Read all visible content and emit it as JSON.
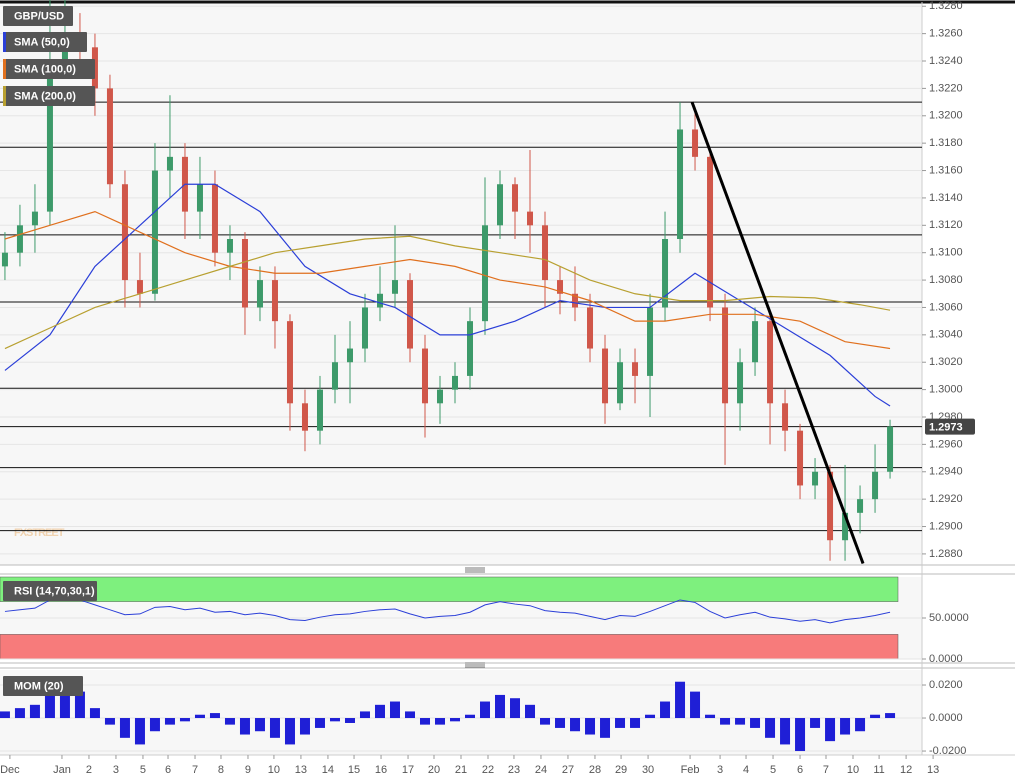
{
  "chart_data": [
    {
      "type": "candlestick",
      "symbol": "GBP/USD",
      "ohlc": [
        [
          1.309,
          1.3115,
          1.308,
          1.31
        ],
        [
          1.31,
          1.3135,
          1.309,
          1.312
        ],
        [
          1.312,
          1.315,
          1.31,
          1.313
        ],
        [
          1.313,
          1.3285,
          1.312,
          1.324
        ],
        [
          1.324,
          1.3285,
          1.323,
          1.326
        ],
        [
          1.326,
          1.3275,
          1.324,
          1.325
        ],
        [
          1.325,
          1.326,
          1.32,
          1.322
        ],
        [
          1.322,
          1.323,
          1.314,
          1.315
        ],
        [
          1.315,
          1.316,
          1.306,
          1.308
        ],
        [
          1.308,
          1.31,
          1.306,
          1.307
        ],
        [
          1.307,
          1.318,
          1.3065,
          1.316
        ],
        [
          1.316,
          1.3215,
          1.314,
          1.317
        ],
        [
          1.317,
          1.318,
          1.311,
          1.313
        ],
        [
          1.313,
          1.317,
          1.311,
          1.315
        ],
        [
          1.315,
          1.316,
          1.309,
          1.31
        ],
        [
          1.31,
          1.312,
          1.308,
          1.311
        ],
        [
          1.311,
          1.3115,
          1.304,
          1.306
        ],
        [
          1.306,
          1.309,
          1.305,
          1.308
        ],
        [
          1.308,
          1.309,
          1.303,
          1.305
        ],
        [
          1.305,
          1.3055,
          1.297,
          1.299
        ],
        [
          1.299,
          1.3,
          1.2955,
          1.297
        ],
        [
          1.297,
          1.301,
          1.296,
          1.3
        ],
        [
          1.3,
          1.304,
          1.299,
          1.302
        ],
        [
          1.302,
          1.305,
          1.299,
          1.303
        ],
        [
          1.303,
          1.307,
          1.302,
          1.306
        ],
        [
          1.306,
          1.309,
          1.305,
          1.307
        ],
        [
          1.307,
          1.312,
          1.306,
          1.308
        ],
        [
          1.308,
          1.3085,
          1.302,
          1.303
        ],
        [
          1.303,
          1.304,
          1.2965,
          1.299
        ],
        [
          1.299,
          1.301,
          1.2975,
          1.3
        ],
        [
          1.3,
          1.302,
          1.299,
          1.301
        ],
        [
          1.301,
          1.306,
          1.3,
          1.305
        ],
        [
          1.305,
          1.3155,
          1.304,
          1.312
        ],
        [
          1.312,
          1.316,
          1.311,
          1.315
        ],
        [
          1.315,
          1.3155,
          1.311,
          1.313
        ],
        [
          1.313,
          1.3175,
          1.31,
          1.312
        ],
        [
          1.312,
          1.313,
          1.306,
          1.308
        ],
        [
          1.308,
          1.309,
          1.3055,
          1.307
        ],
        [
          1.307,
          1.309,
          1.305,
          1.306
        ],
        [
          1.306,
          1.307,
          1.302,
          1.303
        ],
        [
          1.303,
          1.304,
          1.2975,
          1.299
        ],
        [
          1.299,
          1.303,
          1.2985,
          1.302
        ],
        [
          1.302,
          1.303,
          1.299,
          1.301
        ],
        [
          1.301,
          1.307,
          1.298,
          1.306
        ],
        [
          1.306,
          1.313,
          1.305,
          1.311
        ],
        [
          1.311,
          1.321,
          1.31,
          1.319
        ],
        [
          1.319,
          1.3205,
          1.316,
          1.317
        ],
        [
          1.317,
          1.3175,
          1.305,
          1.306
        ],
        [
          1.306,
          1.307,
          1.2945,
          1.299
        ],
        [
          1.299,
          1.303,
          1.297,
          1.302
        ],
        [
          1.302,
          1.306,
          1.301,
          1.305
        ],
        [
          1.305,
          1.3055,
          1.296,
          1.299
        ],
        [
          1.299,
          1.3,
          1.2955,
          1.297
        ],
        [
          1.297,
          1.2975,
          1.292,
          1.293
        ],
        [
          1.293,
          1.295,
          1.292,
          1.294
        ],
        [
          1.294,
          1.2945,
          1.2875,
          1.289
        ],
        [
          1.289,
          1.2945,
          1.2875,
          1.291
        ],
        [
          1.291,
          1.293,
          1.2895,
          1.292
        ],
        [
          1.292,
          1.296,
          1.291,
          1.294
        ],
        [
          1.294,
          1.2978,
          1.2935,
          1.2973
        ]
      ],
      "up_color": "#3d9a6a",
      "down_color": "#d0574a",
      "overlays": [
        {
          "name": "SMA (50,0)",
          "color": "#2b3fd8",
          "x": [
            0,
            3,
            6,
            9,
            12,
            14,
            17,
            20,
            23,
            26,
            29,
            31,
            34,
            37,
            40,
            43,
            46,
            49,
            52,
            55,
            58,
            59
          ],
          "values": [
            1.3014,
            1.304,
            1.309,
            1.312,
            1.315,
            1.315,
            1.313,
            1.309,
            1.307,
            1.306,
            1.304,
            1.304,
            1.305,
            1.3065,
            1.306,
            1.306,
            1.3085,
            1.3065,
            1.3045,
            1.3025,
            1.2995,
            1.2988
          ]
        },
        {
          "name": "SMA (100,0)",
          "color": "#e0701e",
          "x": [
            0,
            3,
            6,
            9,
            12,
            15,
            18,
            21,
            24,
            27,
            30,
            33,
            36,
            39,
            42,
            44,
            47,
            50,
            53,
            56,
            59
          ],
          "values": [
            1.311,
            1.312,
            1.313,
            1.3115,
            1.31,
            1.309,
            1.3085,
            1.3085,
            1.309,
            1.3095,
            1.309,
            1.308,
            1.3075,
            1.3065,
            1.305,
            1.305,
            1.3055,
            1.3055,
            1.305,
            1.3035,
            1.303
          ]
        },
        {
          "name": "SMA (200,0)",
          "color": "#b8a030",
          "x": [
            0,
            3,
            6,
            9,
            12,
            15,
            18,
            21,
            24,
            27,
            30,
            33,
            36,
            39,
            42,
            45,
            48,
            51,
            54,
            57,
            59
          ],
          "values": [
            1.303,
            1.3045,
            1.306,
            1.307,
            1.308,
            1.309,
            1.31,
            1.3105,
            1.311,
            1.3112,
            1.3105,
            1.31,
            1.3095,
            1.308,
            1.307,
            1.3065,
            1.3065,
            1.3068,
            1.3067,
            1.3062,
            1.3058
          ]
        }
      ],
      "levels": [
        1.321,
        1.3177,
        1.3113,
        1.3064,
        1.3001,
        1.2973,
        1.2943,
        1.2897
      ],
      "trendline": {
        "x": [
          45.8,
          57.2
        ],
        "y": [
          1.321,
          1.2873
        ]
      },
      "last_price": 1.2973,
      "watermark": "FXSTREET",
      "xlim": [
        -0.33,
        61.13
      ],
      "ylim": [
        1.28719,
        1.32831
      ],
      "yticks": [
        {
          "value": 1.328,
          "label": "1.3280"
        },
        {
          "value": 1.326,
          "label": "1.3260"
        },
        {
          "value": 1.324,
          "label": "1.3240"
        },
        {
          "value": 1.322,
          "label": "1.3220"
        },
        {
          "value": 1.32,
          "label": "1.3200"
        },
        {
          "value": 1.318,
          "label": "1.3180"
        },
        {
          "value": 1.316,
          "label": "1.3160"
        },
        {
          "value": 1.314,
          "label": "1.3140"
        },
        {
          "value": 1.312,
          "label": "1.3120"
        },
        {
          "value": 1.31,
          "label": "1.3100"
        },
        {
          "value": 1.308,
          "label": "1.3080"
        },
        {
          "value": 1.306,
          "label": "1.3060"
        },
        {
          "value": 1.304,
          "label": "1.3040"
        },
        {
          "value": 1.302,
          "label": "1.3020"
        },
        {
          "value": 1.3,
          "label": "1.3000"
        },
        {
          "value": 1.298,
          "label": "1.2980"
        },
        {
          "value": 1.296,
          "label": "1.2960"
        },
        {
          "value": 1.294,
          "label": "1.2940"
        },
        {
          "value": 1.292,
          "label": "1.2920"
        },
        {
          "value": 1.29,
          "label": "1.2900"
        },
        {
          "value": 1.288,
          "label": "1.2880"
        }
      ],
      "xticks": [
        {
          "value": 0.33,
          "label": "Dec"
        },
        {
          "value": 3.8,
          "label": "Jan"
        },
        {
          "value": 5.6,
          "label": "2"
        },
        {
          "value": 7.4,
          "label": "3"
        },
        {
          "value": 9.2,
          "label": "5"
        },
        {
          "value": 10.87,
          "label": "6"
        },
        {
          "value": 12.67,
          "label": "7"
        },
        {
          "value": 14.4,
          "label": "8"
        },
        {
          "value": 16.2,
          "label": "9"
        },
        {
          "value": 17.93,
          "label": "10"
        },
        {
          "value": 19.73,
          "label": "13"
        },
        {
          "value": 21.53,
          "label": "14"
        },
        {
          "value": 23.27,
          "label": "15"
        },
        {
          "value": 25.07,
          "label": "16"
        },
        {
          "value": 26.87,
          "label": "17"
        },
        {
          "value": 28.6,
          "label": "20"
        },
        {
          "value": 30.4,
          "label": "21"
        },
        {
          "value": 32.2,
          "label": "22"
        },
        {
          "value": 33.93,
          "label": "23"
        },
        {
          "value": 35.73,
          "label": "24"
        },
        {
          "value": 37.53,
          "label": "27"
        },
        {
          "value": 39.33,
          "label": "28"
        },
        {
          "value": 41.07,
          "label": "29"
        },
        {
          "value": 42.87,
          "label": "30"
        },
        {
          "value": 45.67,
          "label": "Feb"
        },
        {
          "value": 47.67,
          "label": "3"
        },
        {
          "value": 49.4,
          "label": "4"
        },
        {
          "value": 51.2,
          "label": "5"
        },
        {
          "value": 53,
          "label": "6"
        },
        {
          "value": 54.73,
          "label": "7"
        },
        {
          "value": 56.53,
          "label": "10"
        },
        {
          "value": 58.27,
          "label": "11"
        },
        {
          "value": 60.07,
          "label": "12"
        },
        {
          "value": 61.87,
          "label": "13"
        }
      ]
    },
    {
      "type": "line",
      "title": "RSI (14,70,30,1)",
      "color": "#2b3fd8",
      "values": [
        58,
        60,
        62,
        72,
        74,
        72,
        66,
        60,
        54,
        55,
        63,
        64,
        60,
        62,
        57,
        58,
        54,
        56,
        53,
        48,
        47,
        51,
        54,
        55,
        58,
        60,
        61,
        55,
        50,
        52,
        53,
        57,
        66,
        70,
        67,
        65,
        59,
        57,
        56,
        52,
        48,
        53,
        52,
        58,
        65,
        72,
        69,
        58,
        50,
        54,
        57,
        51,
        49,
        46,
        48,
        44,
        48,
        50,
        53,
        57
      ],
      "bands": [
        {
          "from": 70,
          "to": 100,
          "color": "#7ef07e"
        },
        {
          "from": 0,
          "to": 30,
          "color": "#f77b7b"
        }
      ],
      "ylim": [
        0,
        100
      ],
      "yticks": [
        {
          "value": 50,
          "label": "50.0000"
        },
        {
          "value": 0,
          "label": "0.0000"
        }
      ]
    },
    {
      "type": "bar",
      "title": "MOM (20)",
      "color": "#1f1fd6",
      "values": [
        0.004,
        0.006,
        0.008,
        0.022,
        0.024,
        0.016,
        0.006,
        -0.004,
        -0.012,
        -0.016,
        -0.008,
        -0.004,
        -0.002,
        0.002,
        0.003,
        -0.004,
        -0.01,
        -0.008,
        -0.012,
        -0.016,
        -0.01,
        -0.006,
        -0.002,
        -0.003,
        0.004,
        0.008,
        0.01,
        0.004,
        -0.004,
        -0.004,
        -0.002,
        0.002,
        0.01,
        0.014,
        0.012,
        0.008,
        -0.004,
        -0.006,
        -0.008,
        -0.01,
        -0.012,
        -0.006,
        -0.006,
        0.002,
        0.01,
        0.022,
        0.016,
        0.002,
        -0.004,
        -0.004,
        -0.006,
        -0.012,
        -0.016,
        -0.02,
        -0.006,
        -0.014,
        -0.01,
        -0.008,
        0.002,
        0.003
      ],
      "ylim": [
        -0.0224,
        0.0291
      ],
      "yticks": [
        {
          "value": 0.02,
          "label": "0.0200"
        },
        {
          "value": 0,
          "label": "0.0000"
        },
        {
          "value": -0.02,
          "label": "-0.0200"
        }
      ]
    }
  ]
}
